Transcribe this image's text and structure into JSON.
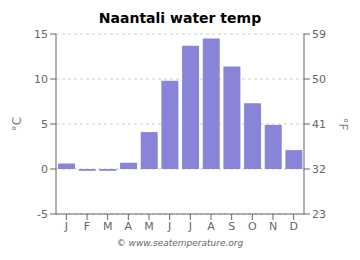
{
  "chart_data": {
    "type": "bar",
    "title": "Naantali water temp",
    "categories": [
      "J",
      "F",
      "M",
      "A",
      "M",
      "J",
      "J",
      "A",
      "S",
      "O",
      "N",
      "D"
    ],
    "values": [
      0.6,
      -0.2,
      -0.2,
      0.7,
      4.1,
      9.8,
      13.7,
      14.5,
      11.4,
      7.3,
      4.9,
      2.1
    ],
    "ylabel": "°C",
    "ylim": [
      -5,
      15
    ],
    "yticks": [
      -5,
      0,
      5,
      10,
      15
    ],
    "y2label": "°F",
    "y2lim": [
      23,
      59
    ],
    "y2ticks": [
      23,
      32,
      41,
      50,
      59
    ],
    "grid": true,
    "annotations": [
      "© www.seatemperature.org"
    ]
  }
}
